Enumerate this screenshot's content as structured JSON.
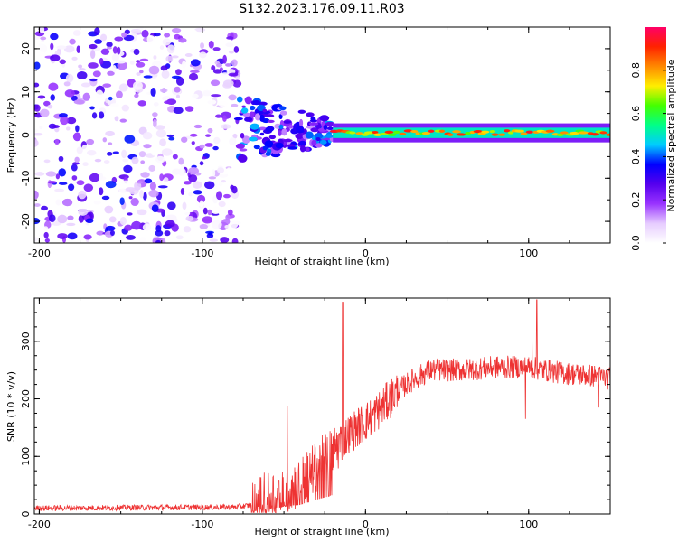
{
  "title": "S132.2023.176.09.11.R03",
  "colors": {
    "snr_line": "#ee3333",
    "axis": "#000000",
    "background": "#ffffff"
  },
  "chart_data": [
    {
      "type": "heatmap",
      "name": "spectrogram",
      "xlabel": "Height of straight line (km)",
      "ylabel": "Frequency (Hz)",
      "xlim": [
        -203,
        150
      ],
      "ylim": [
        -25,
        25
      ],
      "xticks": [
        -200,
        -100,
        0,
        100
      ],
      "xtick_labels": [
        "-200",
        "-100",
        "0",
        "100"
      ],
      "yticks": [
        -20,
        -10,
        0,
        10,
        20
      ],
      "ytick_labels": [
        "-20",
        "-10",
        "0",
        "10",
        "20"
      ],
      "regions": [
        {
          "description": "broadband noise",
          "x_range": [
            -203,
            -78
          ],
          "y_range": [
            -25,
            25
          ],
          "amplitude": 0.15
        },
        {
          "description": "transition blobs",
          "x_range": [
            -78,
            -20
          ],
          "y_range": [
            -8,
            8
          ],
          "amplitude": 0.35
        },
        {
          "description": "narrow carrier band",
          "x_range": [
            -20,
            150
          ],
          "y_center": 0.5,
          "half_width": 2,
          "amplitude": 0.8
        }
      ],
      "colorbar": {
        "label": "Normalized spectral amplitude",
        "range": [
          0,
          1
        ],
        "ticks": [
          0.0,
          0.2,
          0.4,
          0.6,
          0.8
        ],
        "tick_labels": [
          "0.0",
          "0.2",
          "0.4",
          "0.6",
          "0.8"
        ],
        "stops": [
          "#ffffff",
          "#e6ccff",
          "#9933ff",
          "#5500ee",
          "#0000ff",
          "#00ccff",
          "#00ff88",
          "#44ff00",
          "#ffee00",
          "#ff8800",
          "#ff2200",
          "#ff0066"
        ]
      }
    },
    {
      "type": "line",
      "name": "snr",
      "xlabel": "Height of straight line (km)",
      "ylabel": "SNR (10 * v/v)",
      "xlim": [
        -203,
        150
      ],
      "ylim": [
        0,
        375
      ],
      "xticks": [
        -200,
        -100,
        0,
        100
      ],
      "xtick_labels": [
        "-200",
        "-100",
        "0",
        "100"
      ],
      "yticks": [
        0,
        100,
        200,
        300
      ],
      "ytick_labels": [
        "0",
        "100",
        "200",
        "300"
      ],
      "trend": {
        "x": [
          -203,
          -80,
          -70,
          -60,
          -40,
          -20,
          -10,
          0,
          10,
          20,
          30,
          40,
          60,
          80,
          100,
          120,
          140,
          150
        ],
        "y": [
          10,
          12,
          15,
          30,
          55,
          110,
          140,
          160,
          185,
          215,
          235,
          250,
          250,
          255,
          255,
          245,
          240,
          235
        ]
      },
      "spikes": [
        {
          "x": -14,
          "y": 368
        },
        {
          "x": -48,
          "y": 188
        },
        {
          "x": 105,
          "y": 372
        },
        {
          "x": 102,
          "y": 300
        },
        {
          "x": 98,
          "y": 165
        },
        {
          "x": 143,
          "y": 185
        }
      ]
    }
  ]
}
